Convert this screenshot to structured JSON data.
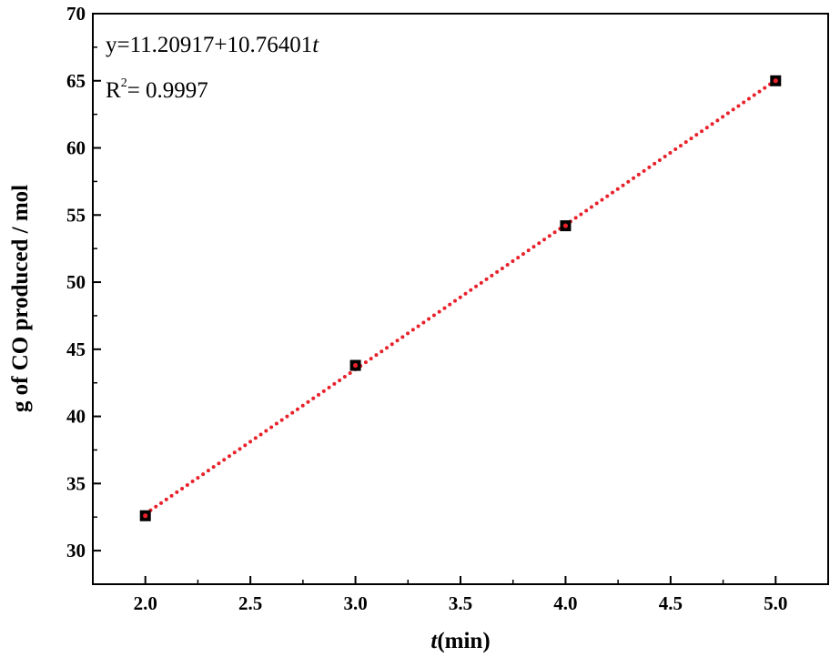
{
  "chart_data": {
    "type": "scatter",
    "xlabel_italic": "t",
    "xlabel_rest": "(min)",
    "ylabel": "g of CO produced / mol",
    "xlim": [
      1.75,
      5.25
    ],
    "ylim": [
      27.5,
      70
    ],
    "x_ticks": [
      "2.0",
      "2.5",
      "3.0",
      "3.5",
      "4.0",
      "4.5",
      "5.0"
    ],
    "y_ticks": [
      "30",
      "35",
      "40",
      "45",
      "50",
      "55",
      "60",
      "65",
      "70"
    ],
    "series": [
      {
        "marker": "square",
        "color": "#000000",
        "x": [
          2.0,
          3.0,
          4.0,
          5.0
        ],
        "y": [
          32.6,
          43.8,
          54.2,
          65.0
        ]
      }
    ],
    "fit": {
      "intercept": 11.20917,
      "slope": 10.76401,
      "x_range": [
        2.0,
        5.0
      ],
      "color": "#e8212a",
      "style": "dotted"
    },
    "annotations": {
      "equation_prefix": "y=11.20917+10.76401",
      "equation_var": "t",
      "r2_label": "R",
      "r2_sup": "2",
      "r2_value": "= 0.9997"
    },
    "grid": false,
    "legend": "none"
  }
}
